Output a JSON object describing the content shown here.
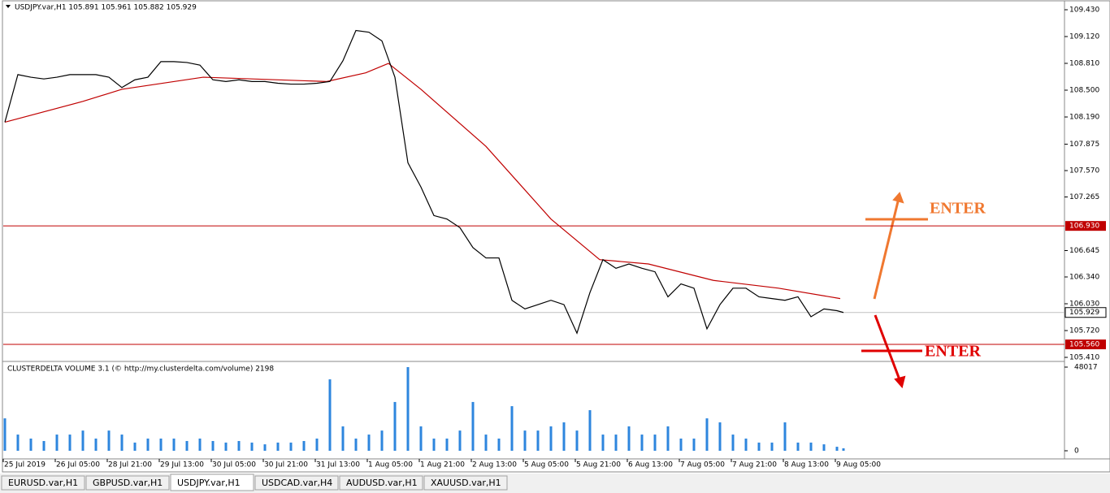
{
  "header": {
    "title": "USDJPY.var,H1  105.891 105.961 105.882 105.929"
  },
  "price_pane": {
    "ylim": [
      105.41,
      109.43
    ],
    "yticks": [
      {
        "value": 105.41,
        "label": "105.410"
      },
      {
        "value": 105.72,
        "label": "105.720"
      },
      {
        "value": 106.03,
        "label": "106.030"
      },
      {
        "value": 106.34,
        "label": "106.340"
      },
      {
        "value": 106.645,
        "label": "106.645"
      },
      {
        "value": 107.265,
        "label": "107.265"
      },
      {
        "value": 107.57,
        "label": "107.570"
      },
      {
        "value": 107.875,
        "label": "107.875"
      },
      {
        "value": 108.19,
        "label": "108.190"
      },
      {
        "value": 108.5,
        "label": "108.500"
      },
      {
        "value": 108.81,
        "label": "108.810"
      },
      {
        "value": 109.12,
        "label": "109.120"
      },
      {
        "value": 109.43,
        "label": "109.430"
      }
    ],
    "x": [
      0,
      4,
      8,
      12,
      16,
      20,
      24,
      28,
      32,
      36,
      40,
      44,
      48,
      52,
      56,
      60,
      64,
      68,
      72,
      76,
      80,
      84,
      88,
      92,
      96,
      100,
      104,
      108,
      112,
      116,
      120,
      124,
      128,
      132,
      136,
      140,
      144,
      148,
      152,
      156,
      160,
      164,
      168,
      172,
      176,
      180,
      184,
      188,
      192,
      196,
      200,
      204,
      208,
      212,
      216,
      220,
      224,
      228,
      232,
      236,
      240,
      244,
      248,
      252,
      256,
      258
    ],
    "closes": [
      108.13,
      108.68,
      108.65,
      108.63,
      108.65,
      108.68,
      108.68,
      108.68,
      108.65,
      108.53,
      108.62,
      108.65,
      108.83,
      108.83,
      108.82,
      108.79,
      108.62,
      108.6,
      108.62,
      108.6,
      108.6,
      108.58,
      108.57,
      108.57,
      108.58,
      108.6,
      108.84,
      109.19,
      109.17,
      109.07,
      108.65,
      107.66,
      107.38,
      107.05,
      107.01,
      106.91,
      106.68,
      106.56,
      106.56,
      106.07,
      105.97,
      106.02,
      106.07,
      106.02,
      105.69,
      106.16,
      106.54,
      106.44,
      106.49,
      106.44,
      106.4,
      106.11,
      106.26,
      106.21,
      105.74,
      106.02,
      106.21,
      106.21,
      106.11,
      106.09,
      106.07,
      106.11,
      105.88,
      105.97,
      105.95,
      105.929
    ],
    "ma_x": [
      0,
      24,
      36,
      61,
      99,
      111,
      118,
      128,
      148,
      168,
      183,
      198,
      218,
      238,
      257
    ],
    "ma": [
      108.13,
      108.37,
      108.51,
      108.65,
      108.6,
      108.7,
      108.81,
      108.51,
      107.85,
      107.01,
      106.54,
      106.49,
      106.3,
      106.21,
      106.09
    ],
    "levels": [
      {
        "value": 106.93,
        "label": "106.930"
      },
      {
        "value": 105.56,
        "label": "105.560"
      }
    ],
    "current": {
      "value": 105.929,
      "label": "105.929"
    }
  },
  "volume_pane": {
    "title": "CLUSTERDELTA VOLUME 3.1 (© http://my.clusterdelta.com/volume) 2198",
    "ylim": [
      0,
      48017
    ],
    "yticks": [
      0,
      48017
    ],
    "values": [
      18600,
      9300,
      7000,
      5600,
      9300,
      9300,
      11600,
      7000,
      11600,
      9300,
      4700,
      7000,
      7000,
      7000,
      5600,
      7000,
      5600,
      4700,
      5600,
      4700,
      3700,
      4700,
      4700,
      5600,
      7000,
      41000,
      14000,
      7000,
      9300,
      11600,
      28000,
      48017,
      14000,
      7000,
      7000,
      11600,
      28000,
      9300,
      7000,
      25600,
      11600,
      11600,
      14000,
      16300,
      11600,
      23300,
      9300,
      9300,
      14000,
      9300,
      9300,
      14000,
      7000,
      7000,
      18600,
      16300,
      9300,
      7000,
      4700,
      4700,
      16300,
      4700,
      4700,
      3700,
      2300,
      1400
    ]
  },
  "time_axis": {
    "labels": [
      "25 Jul 2019",
      "26 Jul 05:00",
      "28 Jul 21:00",
      "29 Jul 13:00",
      "30 Jul 05:00",
      "30 Jul 21:00",
      "31 Jul 13:00",
      "1 Aug 05:00",
      "1 Aug 21:00",
      "2 Aug 13:00",
      "5 Aug 05:00",
      "5 Aug 21:00",
      "6 Aug 13:00",
      "7 Aug 05:00",
      "7 Aug 21:00",
      "8 Aug 13:00",
      "9 Aug 05:00"
    ]
  },
  "annotations": [
    "ENTER",
    "ENTER"
  ],
  "tabs": [
    "EURUSD.var,H1",
    "GBPUSD.var,H1",
    "USDJPY.var,H1",
    "USDCAD.var,H4",
    "AUDUSD.var,H1",
    "XAUUSD.var,H1"
  ]
}
